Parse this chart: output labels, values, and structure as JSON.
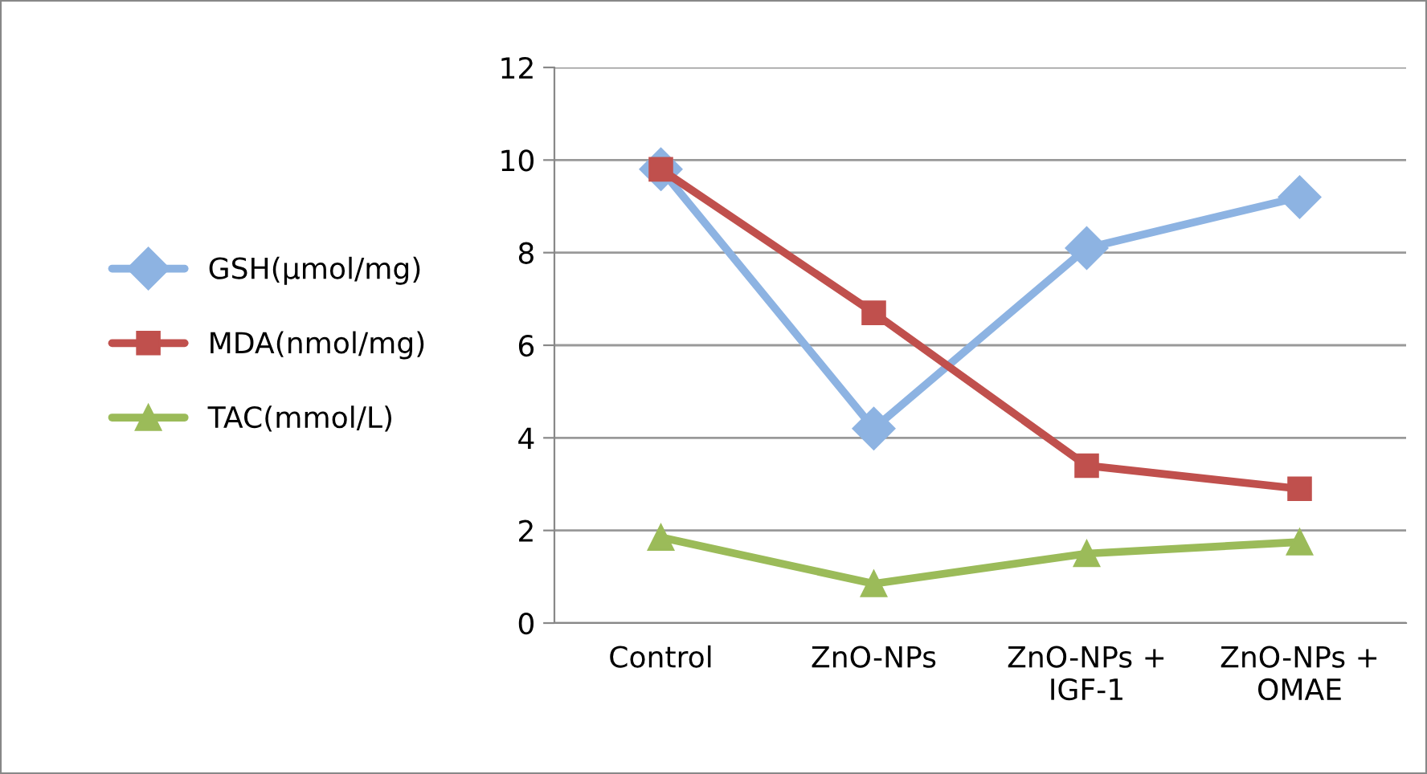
{
  "chart_data": {
    "type": "line",
    "categories": [
      "Control",
      "ZnO-NPs",
      "ZnO-NPs +\nIGF-1",
      "ZnO-NPs +\nOMAE"
    ],
    "series": [
      {
        "name": "GSH(µmol/mg)",
        "color": "#8db3e2",
        "marker": "diamond",
        "values": [
          9.8,
          4.2,
          8.1,
          9.2
        ]
      },
      {
        "name": "MDA(nmol/mg)",
        "color": "#c0504d",
        "marker": "square",
        "values": [
          9.8,
          6.7,
          3.4,
          2.9
        ]
      },
      {
        "name": "TAC(mmol/L)",
        "color": "#9bbb59",
        "marker": "triangle",
        "values": [
          1.85,
          0.85,
          1.5,
          1.75
        ]
      }
    ],
    "ylim": [
      0,
      12
    ],
    "yticks": [
      0,
      2,
      4,
      6,
      8,
      10,
      12
    ],
    "grid": "y",
    "legend": "left",
    "line_style": "solid"
  }
}
